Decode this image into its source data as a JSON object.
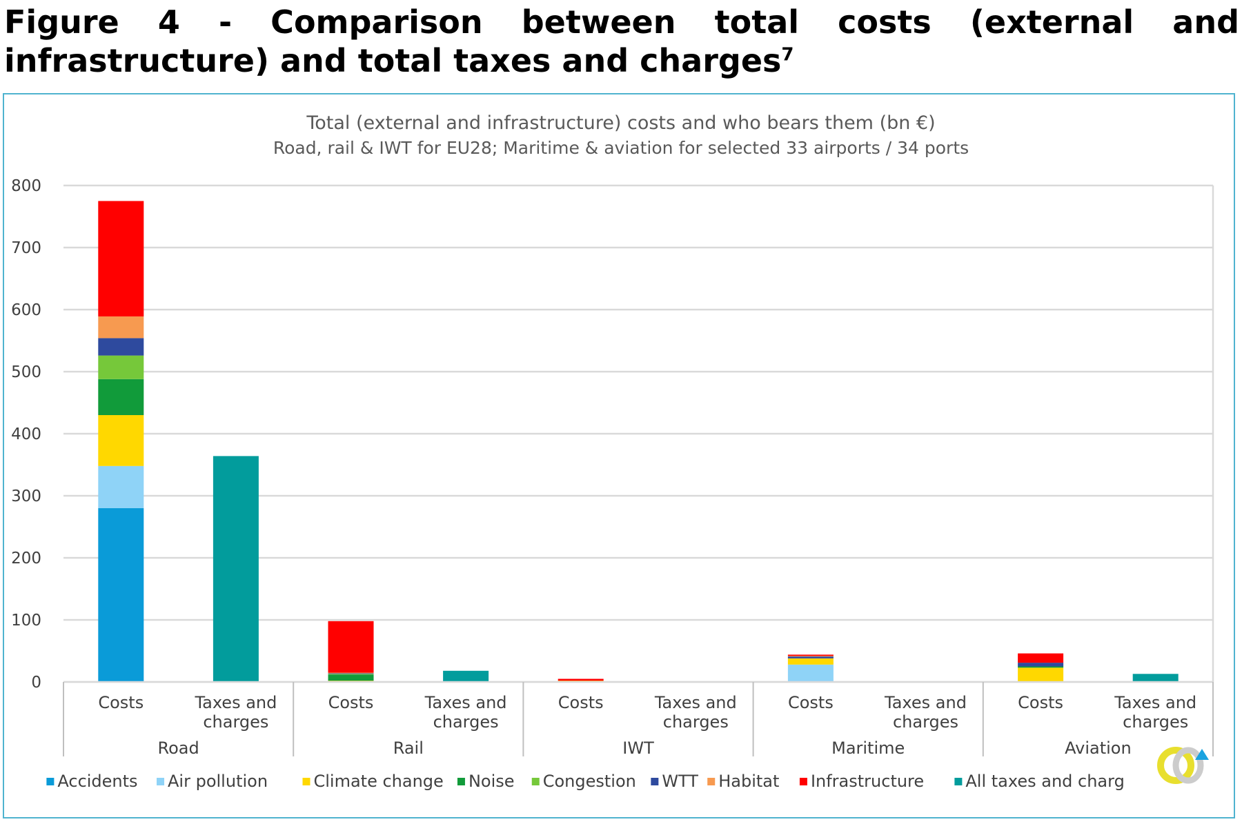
{
  "figure": {
    "heading": "Figure 4 - Comparison between total costs (external and infrastructure) and total taxes and charges",
    "footnote_marker": "7"
  },
  "chart_data": {
    "type": "bar",
    "stacked": true,
    "title": "Total (external and infrastructure) costs and who bears them (bn €)",
    "subtitle": "Road, rail & IWT for EU28; Maritime & aviation for selected 33 airports / 34 ports",
    "ylim": [
      0,
      800
    ],
    "yticks": [
      0,
      100,
      200,
      300,
      400,
      500,
      600,
      700,
      800
    ],
    "grid": true,
    "legend_position": "bottom",
    "groups": [
      "Road",
      "Rail",
      "IWT",
      "Maritime",
      "Aviation"
    ],
    "bar_labels": [
      "Costs",
      "Taxes and charges"
    ],
    "categories": [
      "Road Costs",
      "Road Taxes and charges",
      "Rail Costs",
      "Rail Taxes and charges",
      "IWT Costs",
      "IWT Taxes and charges",
      "Maritime Costs",
      "Maritime Taxes and charges",
      "Aviation Costs",
      "Aviation Taxes and charges"
    ],
    "series": [
      {
        "name": "Accidents",
        "color": "#0a9bd8",
        "values": [
          280,
          0,
          0,
          0,
          0,
          0,
          0,
          0,
          0,
          0
        ]
      },
      {
        "name": "Air pollution",
        "color": "#8fd3f7",
        "values": [
          68,
          0,
          1,
          0,
          1,
          0,
          28,
          0,
          1,
          0
        ]
      },
      {
        "name": "Climate change",
        "color": "#ffd800",
        "values": [
          82,
          0,
          1,
          0,
          1,
          0,
          10,
          0,
          22,
          0
        ]
      },
      {
        "name": "Noise",
        "color": "#119b3a",
        "values": [
          58,
          0,
          10,
          0,
          0,
          0,
          0,
          0,
          2,
          0
        ]
      },
      {
        "name": "Congestion",
        "color": "#76c83a",
        "values": [
          38,
          0,
          1,
          0,
          0,
          0,
          0,
          0,
          0,
          0
        ]
      },
      {
        "name": "WTT",
        "color": "#2e4a9e",
        "values": [
          28,
          0,
          1,
          0,
          0,
          0,
          3,
          0,
          6,
          0
        ]
      },
      {
        "name": "Habitat",
        "color": "#f79a50",
        "values": [
          35,
          0,
          1,
          0,
          0,
          0,
          1,
          0,
          0,
          0
        ]
      },
      {
        "name": "Infrastructure",
        "color": "#ff0000",
        "values": [
          186,
          0,
          83,
          0,
          3,
          0,
          2,
          0,
          15,
          0
        ]
      },
      {
        "name": "All taxes and charg",
        "color": "#029c9c",
        "values": [
          0,
          364,
          0,
          18,
          0,
          0,
          0,
          0,
          0,
          13
        ]
      }
    ]
  }
}
